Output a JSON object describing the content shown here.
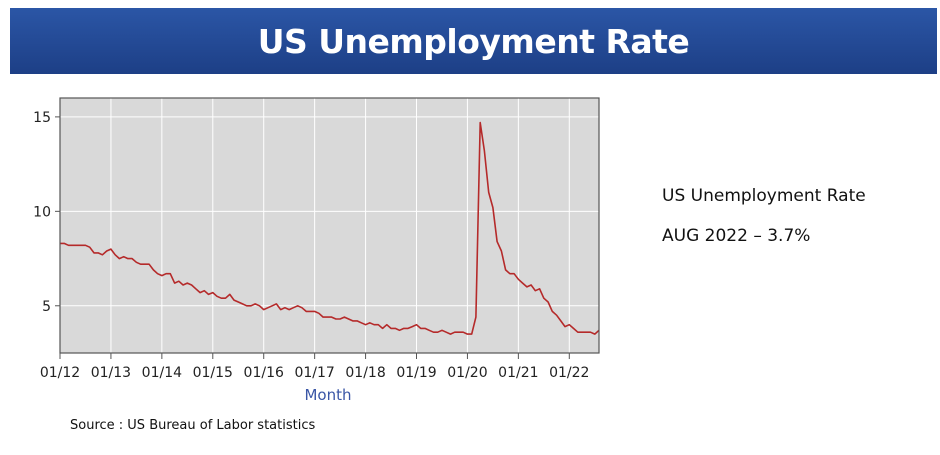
{
  "title": "US Unemployment Rate",
  "side_panel": {
    "heading": "US Unemployment Rate",
    "latest": "AUG 2022 – 3.7%"
  },
  "source": "Source : US Bureau of Labor statistics",
  "chart_data": {
    "type": "line",
    "title": "US Unemployment Rate",
    "xlabel": "Month",
    "ylabel": "",
    "x_ticks": [
      "01/12",
      "01/13",
      "01/14",
      "01/15",
      "01/16",
      "01/17",
      "01/18",
      "01/19",
      "01/20",
      "01/21",
      "01/22"
    ],
    "y_ticks": [
      5,
      10,
      15
    ],
    "ylim": [
      2.5,
      16
    ],
    "xlim": [
      "2012-01",
      "2022-08"
    ],
    "grid": true,
    "colors": {
      "line": "#b52a2a",
      "plot_bg": "#d9d9d9",
      "grid": "#ffffff",
      "frame": "#555555"
    },
    "series": [
      {
        "x": [
          "2012-01",
          "2012-02",
          "2012-03",
          "2012-04",
          "2012-05",
          "2012-06",
          "2012-07",
          "2012-08",
          "2012-09",
          "2012-10",
          "2012-11",
          "2012-12",
          "2013-01",
          "2013-02",
          "2013-03",
          "2013-04",
          "2013-05",
          "2013-06",
          "2013-07",
          "2013-08",
          "2013-09",
          "2013-10",
          "2013-11",
          "2013-12",
          "2014-01",
          "2014-02",
          "2014-03",
          "2014-04",
          "2014-05",
          "2014-06",
          "2014-07",
          "2014-08",
          "2014-09",
          "2014-10",
          "2014-11",
          "2014-12",
          "2015-01",
          "2015-02",
          "2015-03",
          "2015-04",
          "2015-05",
          "2015-06",
          "2015-07",
          "2015-08",
          "2015-09",
          "2015-10",
          "2015-11",
          "2015-12",
          "2016-01",
          "2016-02",
          "2016-03",
          "2016-04",
          "2016-05",
          "2016-06",
          "2016-07",
          "2016-08",
          "2016-09",
          "2016-10",
          "2016-11",
          "2016-12",
          "2017-01",
          "2017-02",
          "2017-03",
          "2017-04",
          "2017-05",
          "2017-06",
          "2017-07",
          "2017-08",
          "2017-09",
          "2017-10",
          "2017-11",
          "2017-12",
          "2018-01",
          "2018-02",
          "2018-03",
          "2018-04",
          "2018-05",
          "2018-06",
          "2018-07",
          "2018-08",
          "2018-09",
          "2018-10",
          "2018-11",
          "2018-12",
          "2019-01",
          "2019-02",
          "2019-03",
          "2019-04",
          "2019-05",
          "2019-06",
          "2019-07",
          "2019-08",
          "2019-09",
          "2019-10",
          "2019-11",
          "2019-12",
          "2020-01",
          "2020-02",
          "2020-03",
          "2020-04",
          "2020-05",
          "2020-06",
          "2020-07",
          "2020-08",
          "2020-09",
          "2020-10",
          "2020-11",
          "2020-12",
          "2021-01",
          "2021-02",
          "2021-03",
          "2021-04",
          "2021-05",
          "2021-06",
          "2021-07",
          "2021-08",
          "2021-09",
          "2021-10",
          "2021-11",
          "2021-12",
          "2022-01",
          "2022-02",
          "2022-03",
          "2022-04",
          "2022-05",
          "2022-06",
          "2022-07",
          "2022-08"
        ],
        "values": [
          8.3,
          8.3,
          8.2,
          8.2,
          8.2,
          8.2,
          8.2,
          8.1,
          7.8,
          7.8,
          7.7,
          7.9,
          8.0,
          7.7,
          7.5,
          7.6,
          7.5,
          7.5,
          7.3,
          7.2,
          7.2,
          7.2,
          6.9,
          6.7,
          6.6,
          6.7,
          6.7,
          6.2,
          6.3,
          6.1,
          6.2,
          6.1,
          5.9,
          5.7,
          5.8,
          5.6,
          5.7,
          5.5,
          5.4,
          5.4,
          5.6,
          5.3,
          5.2,
          5.1,
          5.0,
          5.0,
          5.1,
          5.0,
          4.8,
          4.9,
          5.0,
          5.1,
          4.8,
          4.9,
          4.8,
          4.9,
          5.0,
          4.9,
          4.7,
          4.7,
          4.7,
          4.6,
          4.4,
          4.4,
          4.4,
          4.3,
          4.3,
          4.4,
          4.3,
          4.2,
          4.2,
          4.1,
          4.0,
          4.1,
          4.0,
          4.0,
          3.8,
          4.0,
          3.8,
          3.8,
          3.7,
          3.8,
          3.8,
          3.9,
          4.0,
          3.8,
          3.8,
          3.7,
          3.6,
          3.6,
          3.7,
          3.6,
          3.5,
          3.6,
          3.6,
          3.6,
          3.5,
          3.5,
          4.4,
          14.7,
          13.2,
          11.0,
          10.2,
          8.4,
          7.9,
          6.9,
          6.7,
          6.7,
          6.4,
          6.2,
          6.0,
          6.1,
          5.8,
          5.9,
          5.4,
          5.2,
          4.7,
          4.5,
          4.2,
          3.9,
          4.0,
          3.8,
          3.6,
          3.6,
          3.6,
          3.6,
          3.5,
          3.7
        ]
      }
    ]
  }
}
